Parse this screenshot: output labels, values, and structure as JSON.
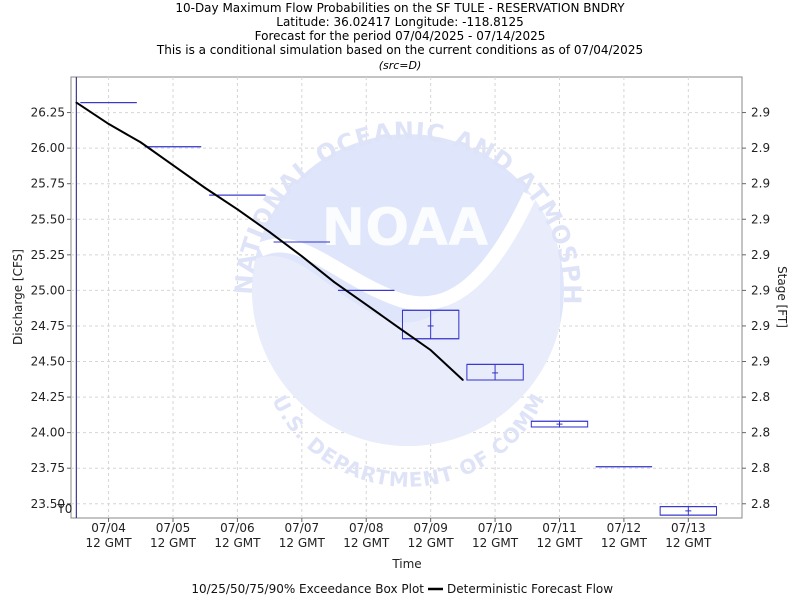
{
  "chart_data": {
    "type": "box-and-line",
    "title_lines": [
      "10-Day Maximum Flow Probabilities on the SF TULE - RESERVATION BNDRY",
      "Latitude: 36.02417 Longitude: -118.8125",
      "Forecast for the period 07/04/2025 - 07/14/2025",
      "This is a conditional simulation based on the current conditions as of 07/04/2025"
    ],
    "source_note": "(src=D)",
    "xlabel": "Time",
    "ylabel": "Discharge [CFS]",
    "y2label": "Stage [FT]",
    "x_ticks": [
      {
        "date": "07/04",
        "time": "12 GMT"
      },
      {
        "date": "07/05",
        "time": "12 GMT"
      },
      {
        "date": "07/06",
        "time": "12 GMT"
      },
      {
        "date": "07/07",
        "time": "12 GMT"
      },
      {
        "date": "07/08",
        "time": "12 GMT"
      },
      {
        "date": "07/09",
        "time": "12 GMT"
      },
      {
        "date": "07/10",
        "time": "12 GMT"
      },
      {
        "date": "07/11",
        "time": "12 GMT"
      },
      {
        "date": "07/12",
        "time": "12 GMT"
      },
      {
        "date": "07/13",
        "time": "12 GMT"
      }
    ],
    "xlim": [
      "07/03 22:00",
      "07/14 08:00"
    ],
    "ylim": [
      23.4,
      26.5
    ],
    "y_ticks": [
      "23.50",
      "23.75",
      "24.00",
      "24.25",
      "24.50",
      "24.75",
      "25.00",
      "25.25",
      "25.50",
      "25.75",
      "26.00",
      "26.25"
    ],
    "y2_ticks": [
      {
        "discharge": 23.5,
        "label": "2.8"
      },
      {
        "discharge": 23.75,
        "label": "2.8"
      },
      {
        "discharge": 24.0,
        "label": "2.8"
      },
      {
        "discharge": 24.25,
        "label": "2.8"
      },
      {
        "discharge": 24.5,
        "label": "2.9"
      },
      {
        "discharge": 24.75,
        "label": "2.9"
      },
      {
        "discharge": 25.0,
        "label": "2.9"
      },
      {
        "discharge": 25.25,
        "label": "2.9"
      },
      {
        "discharge": 25.5,
        "label": "2.9"
      },
      {
        "discharge": 25.75,
        "label": "2.9"
      },
      {
        "discharge": 26.0,
        "label": "2.9"
      },
      {
        "discharge": 26.25,
        "label": "2.9"
      }
    ],
    "t0_label": "T0",
    "t0_time": "07/04 00:00",
    "boxes": [
      {
        "day": "07/04",
        "p10": 26.32,
        "p25": 26.32,
        "p50": 26.32,
        "p75": 26.32,
        "p90": 26.32
      },
      {
        "day": "07/05",
        "p10": 26.01,
        "p25": 26.01,
        "p50": 26.01,
        "p75": 26.01,
        "p90": 26.01
      },
      {
        "day": "07/06",
        "p10": 25.67,
        "p25": 25.67,
        "p50": 25.67,
        "p75": 25.67,
        "p90": 25.67
      },
      {
        "day": "07/07",
        "p10": 25.34,
        "p25": 25.34,
        "p50": 25.34,
        "p75": 25.34,
        "p90": 25.34
      },
      {
        "day": "07/08",
        "p10": 25.0,
        "p25": 25.0,
        "p50": 25.0,
        "p75": 25.0,
        "p90": 25.0
      },
      {
        "day": "07/09",
        "p10": 24.66,
        "p25": 24.66,
        "p50": 24.75,
        "p75": 24.86,
        "p90": 24.86
      },
      {
        "day": "07/10",
        "p10": 24.37,
        "p25": 24.37,
        "p50": 24.42,
        "p75": 24.48,
        "p90": 24.48
      },
      {
        "day": "07/11",
        "p10": 24.04,
        "p25": 24.04,
        "p50": 24.06,
        "p75": 24.08,
        "p90": 24.08
      },
      {
        "day": "07/12",
        "p10": 23.76,
        "p25": 23.76,
        "p50": 23.76,
        "p75": 23.76,
        "p90": 23.76
      },
      {
        "day": "07/13",
        "p10": 23.42,
        "p25": 23.42,
        "p50": 23.45,
        "p75": 23.48,
        "p90": 23.48
      }
    ],
    "deterministic": {
      "name": "Deterministic Forecast Flow",
      "times": [
        "07/04 00:00",
        "07/04 12:00",
        "07/05 00:00",
        "07/05 12:00",
        "07/06 00:00",
        "07/06 12:00",
        "07/07 00:00",
        "07/07 12:00",
        "07/08 00:00",
        "07/08 12:00",
        "07/09 00:00",
        "07/09 12:00",
        "07/10 00:00"
      ],
      "values": [
        26.32,
        26.17,
        26.04,
        25.88,
        25.72,
        25.57,
        25.41,
        25.24,
        25.06,
        24.9,
        24.74,
        24.58,
        24.37
      ]
    },
    "legend": {
      "box_label": "10/25/50/75/90% Exceedance Box Plot",
      "line_label": "Deterministic Forecast Flow",
      "position": "bottom"
    },
    "grid": true,
    "colors": {
      "box": "#3333cc",
      "line": "#000000",
      "grid": "#d5d5d5",
      "t0": "#3b3b8c",
      "watermark": "#dfe3f7"
    },
    "watermark": {
      "emblem": "noaa-logo",
      "center_text": "NOAA",
      "top_arc": "NATIONAL OCEANIC AND ATMOSPHERIC ADMINISTRATION",
      "bottom_arc": "U.S. DEPARTMENT OF COMMERCE"
    }
  }
}
